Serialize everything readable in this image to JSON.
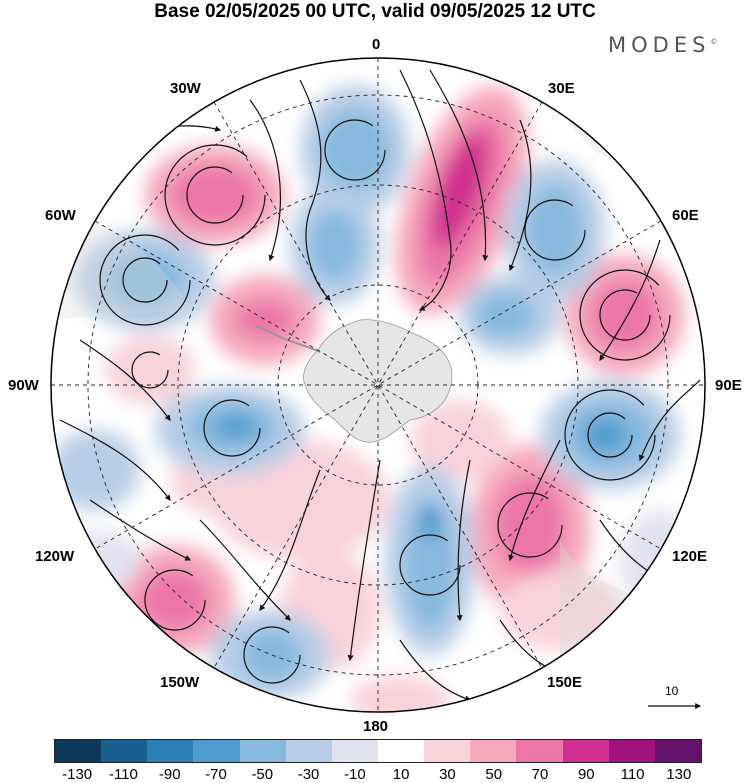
{
  "title": "Base 02/05/2025 00 UTC, valid 09/05/2025 12 UTC",
  "brand": "MODES",
  "brand_mark": "©",
  "map": {
    "projection": "south-polar-stereographic",
    "longitude_labels": {
      "top": "0",
      "bottom": "180",
      "left": "90W",
      "right": "90E",
      "upper_left": "30W",
      "upper_right": "30E",
      "left_upper": "60W",
      "right_upper": "60E",
      "left_lower": "120W",
      "right_lower": "120E",
      "lower_left": "150W",
      "lower_right": "150E"
    },
    "reference_vector_label": "10"
  },
  "colorbar": {
    "colors": [
      "#0d3a5c",
      "#1b5f8e",
      "#2d7fb8",
      "#4f9bcf",
      "#86b9dd",
      "#b8cee8",
      "#e2e3f0",
      "#ffffff",
      "#f9d3da",
      "#f5a9bd",
      "#ec76a8",
      "#cf2f8f",
      "#a0137f",
      "#64126b"
    ],
    "tick_labels": [
      "-130",
      "-110",
      "-90",
      "-70",
      "-50",
      "-30",
      "-10",
      "10",
      "30",
      "50",
      "70",
      "90",
      "110",
      "130"
    ]
  }
}
